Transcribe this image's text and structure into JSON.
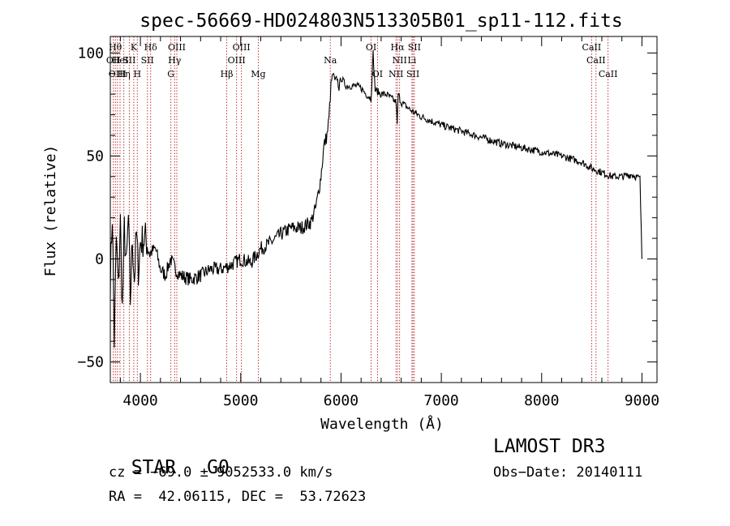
{
  "chart_data": {
    "type": "line",
    "title": "spec-56669-HD024803N513305B01_sp11-112.fits",
    "xlabel": "Wavelength (Å)",
    "ylabel": "Flux (relative)",
    "xlim": [
      3700,
      9150
    ],
    "ylim": [
      -60,
      108
    ],
    "xticks": [
      4000,
      5000,
      6000,
      7000,
      8000,
      9000
    ],
    "yticks": [
      -50,
      0,
      50,
      100
    ],
    "xtick_labels": [
      "4000",
      "5000",
      "6000",
      "7000",
      "8000",
      "9000"
    ],
    "ytick_labels": [
      "−50",
      "0",
      "50",
      "100"
    ],
    "series": [
      {
        "name": "spectrum",
        "x": [
          3700,
          3720,
          3740,
          3760,
          3780,
          3800,
          3820,
          3840,
          3860,
          3880,
          3900,
          3920,
          3940,
          3960,
          3980,
          4000,
          4050,
          4100,
          4150,
          4200,
          4250,
          4300,
          4350,
          4400,
          4500,
          4600,
          4700,
          4800,
          4900,
          5000,
          5100,
          5200,
          5300,
          5400,
          5500,
          5600,
          5700,
          5750,
          5800,
          5830,
          5860,
          5880,
          5900,
          5920,
          5940,
          5960,
          5980,
          6000,
          6050,
          6100,
          6150,
          6200,
          6250,
          6300,
          6320,
          6340,
          6400,
          6450,
          6500,
          6550,
          6560,
          6570,
          6600,
          6650,
          6700,
          6800,
          6900,
          7000,
          7200,
          7400,
          7600,
          7800,
          8000,
          8200,
          8400,
          8500,
          8600,
          8700,
          8800,
          8900,
          8980,
          9000
        ],
        "values": [
          -10,
          22,
          -40,
          10,
          -15,
          18,
          -25,
          15,
          -5,
          20,
          -20,
          10,
          -10,
          12,
          -5,
          8,
          10,
          3,
          5,
          -5,
          -8,
          0,
          -5,
          -8,
          -10,
          -8,
          -5,
          -5,
          -3,
          0,
          -2,
          5,
          8,
          12,
          15,
          15,
          18,
          25,
          40,
          55,
          60,
          68,
          85,
          90,
          86,
          88,
          83,
          88,
          84,
          84,
          84,
          83,
          80,
          78,
          100,
          82,
          80,
          80,
          78,
          76,
          65,
          80,
          76,
          74,
          72,
          69,
          67,
          65,
          62,
          59,
          56,
          54,
          52,
          50,
          47,
          44,
          42,
          40,
          40,
          41,
          39,
          0
        ]
      }
    ],
    "lines": [
      {
        "x": 3730,
        "row": 1,
        "label": "OII"
      },
      {
        "x": 3750,
        "row": 0,
        "label": "Hθ"
      },
      {
        "x": 3771,
        "row": 2,
        "label": "OIII"
      },
      {
        "x": 3797,
        "row": 1,
        "label": "HeI"
      },
      {
        "x": 3835,
        "row": 2,
        "label": "Hη"
      },
      {
        "x": 3889,
        "row": 1,
        "label": "SII"
      },
      {
        "x": 3934,
        "row": 0,
        "label": "K"
      },
      {
        "x": 3969,
        "row": 2,
        "label": "H"
      },
      {
        "x": 4102,
        "row": 0,
        "label": "Hδ"
      },
      {
        "x": 4070,
        "row": 1,
        "label": "SII"
      },
      {
        "x": 4304,
        "row": 2,
        "label": "G"
      },
      {
        "x": 4341,
        "row": 1,
        "label": "Hγ"
      },
      {
        "x": 4363,
        "row": 0,
        "label": "OIII"
      },
      {
        "x": 4861,
        "row": 2,
        "label": "Hβ"
      },
      {
        "x": 4959,
        "row": 1,
        "label": "OIII"
      },
      {
        "x": 5007,
        "row": 0,
        "label": "OIII"
      },
      {
        "x": 5175,
        "row": 2,
        "label": "Mg"
      },
      {
        "x": 5893,
        "row": 1,
        "label": "Na"
      },
      {
        "x": 6300,
        "row": 0,
        "label": "OI"
      },
      {
        "x": 6364,
        "row": 2,
        "label": "OI"
      },
      {
        "x": 6548,
        "row": 2,
        "label": "NII"
      },
      {
        "x": 6563,
        "row": 0,
        "label": "Hα"
      },
      {
        "x": 6584,
        "row": 1,
        "label": "NII"
      },
      {
        "x": 6707,
        "row": 1,
        "label": "Li"
      },
      {
        "x": 6717,
        "row": 2,
        "label": "SII"
      },
      {
        "x": 6731,
        "row": 0,
        "label": "SII"
      },
      {
        "x": 8498,
        "row": 0,
        "label": "CaII"
      },
      {
        "x": 8542,
        "row": 1,
        "label": "CaII"
      },
      {
        "x": 8662,
        "row": 2,
        "label": "CaII"
      }
    ]
  },
  "info": {
    "class_label": "STAR",
    "subclass_label": "G0",
    "survey": "LAMOST DR3",
    "cz": "cz = −69.0 ± 9052533.0 km/s",
    "obs_date": "Obs−Date: 20140111",
    "coords": "RA =  42.06115, DEC =  53.72623"
  }
}
